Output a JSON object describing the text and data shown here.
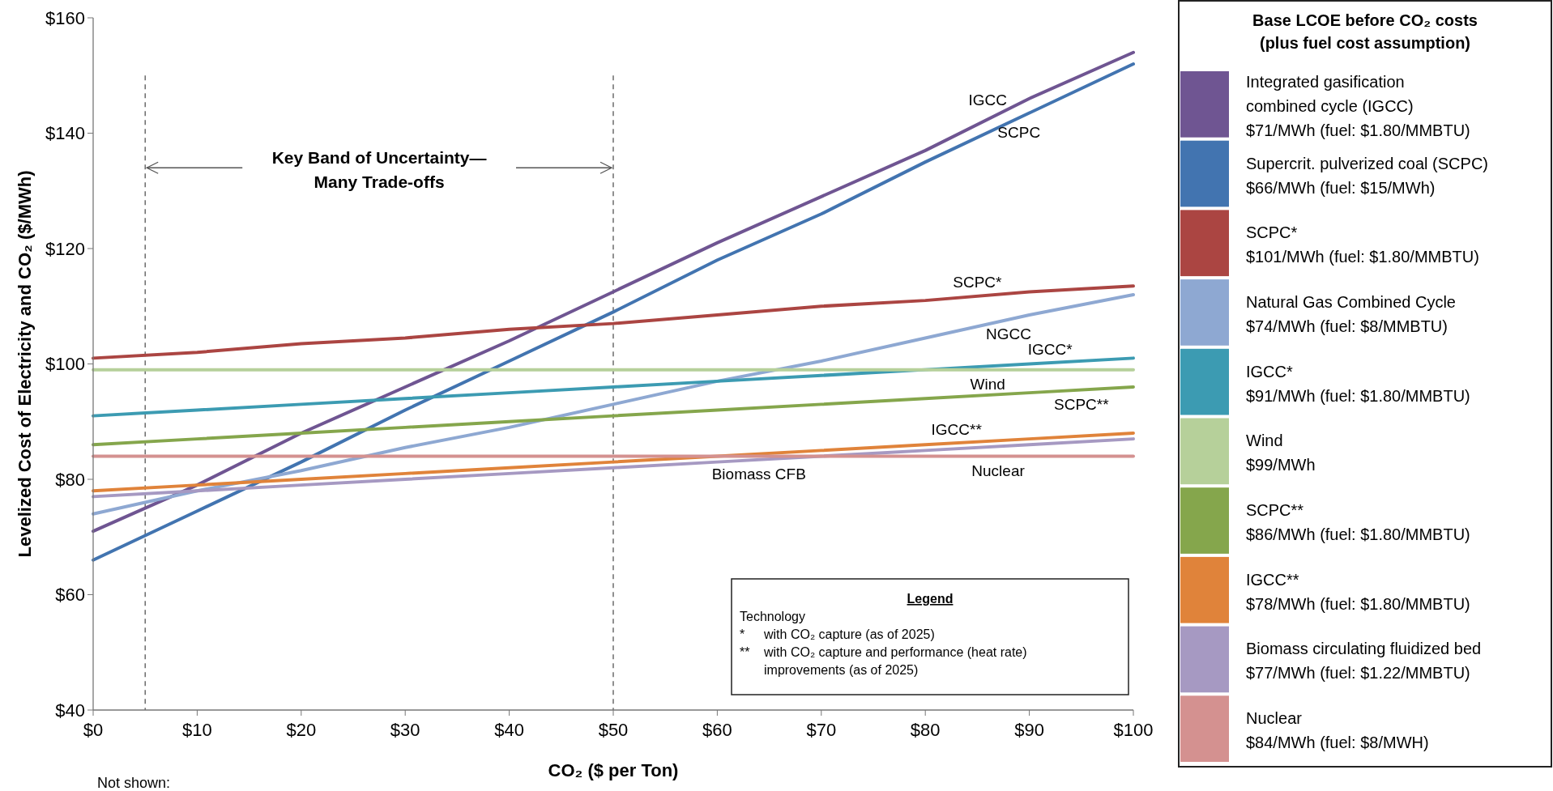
{
  "chart_data": {
    "type": "line",
    "xlabel": "CO₂ ($ per Ton)",
    "ylabel": "Levelized Cost of Electricity and CO₂ ($/MWh)",
    "legend_title": "Base LCOE before CO₂ costs\n(plus fuel cost assumption)",
    "legend": "right",
    "grid": false,
    "marker": "none",
    "line_style": "solid",
    "x": [
      0,
      10,
      20,
      30,
      40,
      50,
      60,
      70,
      80,
      90,
      100
    ],
    "xlim": [
      0,
      100
    ],
    "xticks": [
      {
        "value": 0,
        "label": "$0"
      },
      {
        "value": 10,
        "label": "$10"
      },
      {
        "value": 20,
        "label": "$20"
      },
      {
        "value": 30,
        "label": "$30"
      },
      {
        "value": 40,
        "label": "$40"
      },
      {
        "value": 50,
        "label": "$50"
      },
      {
        "value": 60,
        "label": "$60"
      },
      {
        "value": 70,
        "label": "$70"
      },
      {
        "value": 80,
        "label": "$80"
      },
      {
        "value": 90,
        "label": "$90"
      },
      {
        "value": 100,
        "label": "$100"
      }
    ],
    "ylim": [
      40,
      160
    ],
    "yticks": [
      {
        "value": 40,
        "label": "$40"
      },
      {
        "value": 60,
        "label": "$60"
      },
      {
        "value": 80,
        "label": "$80"
      },
      {
        "value": 100,
        "label": "$100"
      },
      {
        "value": 120,
        "label": "$120"
      },
      {
        "value": 140,
        "label": "$140"
      },
      {
        "value": 160,
        "label": "$160"
      }
    ],
    "series": [
      {
        "name": "Integrated gasification\ncombined cycle (IGCC)\n$71/MWh (fuel: $1.80/MMBTU)",
        "color": "#6f5592",
        "values": [
          71,
          79,
          88,
          96,
          104,
          112.5,
          121,
          129,
          137,
          146,
          154
        ]
      },
      {
        "name": "Supercrit. pulverized coal (SCPC)\n$66/MWh (fuel: $15/MWh)",
        "color": "#4274b0",
        "values": [
          66,
          74.5,
          83,
          92,
          100.5,
          109,
          118,
          126,
          135,
          143.5,
          152
        ]
      },
      {
        "name": "SCPC*\n$101/MWh (fuel: $1.80/MMBTU)",
        "color": "#ab4542",
        "values": [
          101,
          102,
          103.5,
          104.5,
          106,
          107,
          108.5,
          110,
          111,
          112.5,
          113.5
        ]
      },
      {
        "name": "Natural Gas Combined Cycle\n$74/MWh (fuel: $8/MMBTU)",
        "color": "#8ea8d2",
        "values": [
          74,
          78,
          81.5,
          85.5,
          89,
          93,
          97,
          100.5,
          104.5,
          108.5,
          112
        ]
      },
      {
        "name": "IGCC*\n$91/MWh (fuel: $1.80/MMBTU)",
        "color": "#3c9bb2",
        "values": [
          91,
          92,
          93,
          94,
          95,
          96,
          97,
          98,
          99,
          100,
          101
        ]
      },
      {
        "name": "Wind\n$99/MWh",
        "color": "#b6d09a",
        "values": [
          99,
          99,
          99,
          99,
          99,
          99,
          99,
          99,
          99,
          99,
          99
        ]
      },
      {
        "name": "SCPC**\n$86/MWh (fuel: $1.80/MMBTU)",
        "color": "#85a64c",
        "values": [
          86,
          87,
          88,
          89,
          90,
          91,
          92,
          93,
          94,
          95,
          96
        ]
      },
      {
        "name": "IGCC**\n$78/MWh (fuel: $1.80/MMBTU)",
        "color": "#e0833a",
        "values": [
          78,
          79,
          80,
          81,
          82,
          83,
          84,
          85,
          86,
          87,
          88
        ]
      },
      {
        "name": "Biomass circulating fluidized bed\n$77/MWh (fuel: $1.22/MMBTU)",
        "color": "#a699c2",
        "values": [
          77,
          78,
          79,
          80,
          81,
          82,
          83,
          84,
          85,
          86,
          87
        ]
      },
      {
        "name": "Nuclear\n$84/MWh (fuel: $8/MWH)",
        "color": "#d49190",
        "values": [
          84,
          84,
          84,
          84,
          84,
          84,
          84,
          84,
          84,
          84,
          84
        ]
      }
    ],
    "ref_lines": [
      {
        "axis": "x",
        "value": 5,
        "color": "#555555",
        "line_style": "dashed"
      },
      {
        "axis": "x",
        "value": 50,
        "color": "#555555",
        "line_style": "dashed"
      }
    ],
    "annotations": [
      {
        "text": "IGCC",
        "x": 86,
        "y": 143.4
      },
      {
        "text": "SCPC",
        "x": 89,
        "y": 142.6
      },
      {
        "text": "SCPC*",
        "x": 85,
        "y": 111.8
      },
      {
        "text": "NGCC",
        "x": 88,
        "y": 107.7
      },
      {
        "text": "IGCC*",
        "x": 92,
        "y": 100.2
      },
      {
        "text": "Wind",
        "x": 86,
        "y": 99
      },
      {
        "text": "SCPC**",
        "x": 95,
        "y": 95.5
      },
      {
        "text": "IGCC**",
        "x": 83,
        "y": 86.3
      },
      {
        "text": "Biomass CFB",
        "x": 64,
        "y": 83.4
      },
      {
        "text": "Nuclear",
        "x": 87,
        "y": 84
      },
      "Key Band of Uncertainty—\nMany Trade-offs",
      "Legend",
      "Technology",
      "*\twith CO₂ capture (as of 2025)",
      "**\twith CO₂ capture and performance (heat rate)\nimprovements (as of 2025)",
      "Not shown:"
    ]
  }
}
